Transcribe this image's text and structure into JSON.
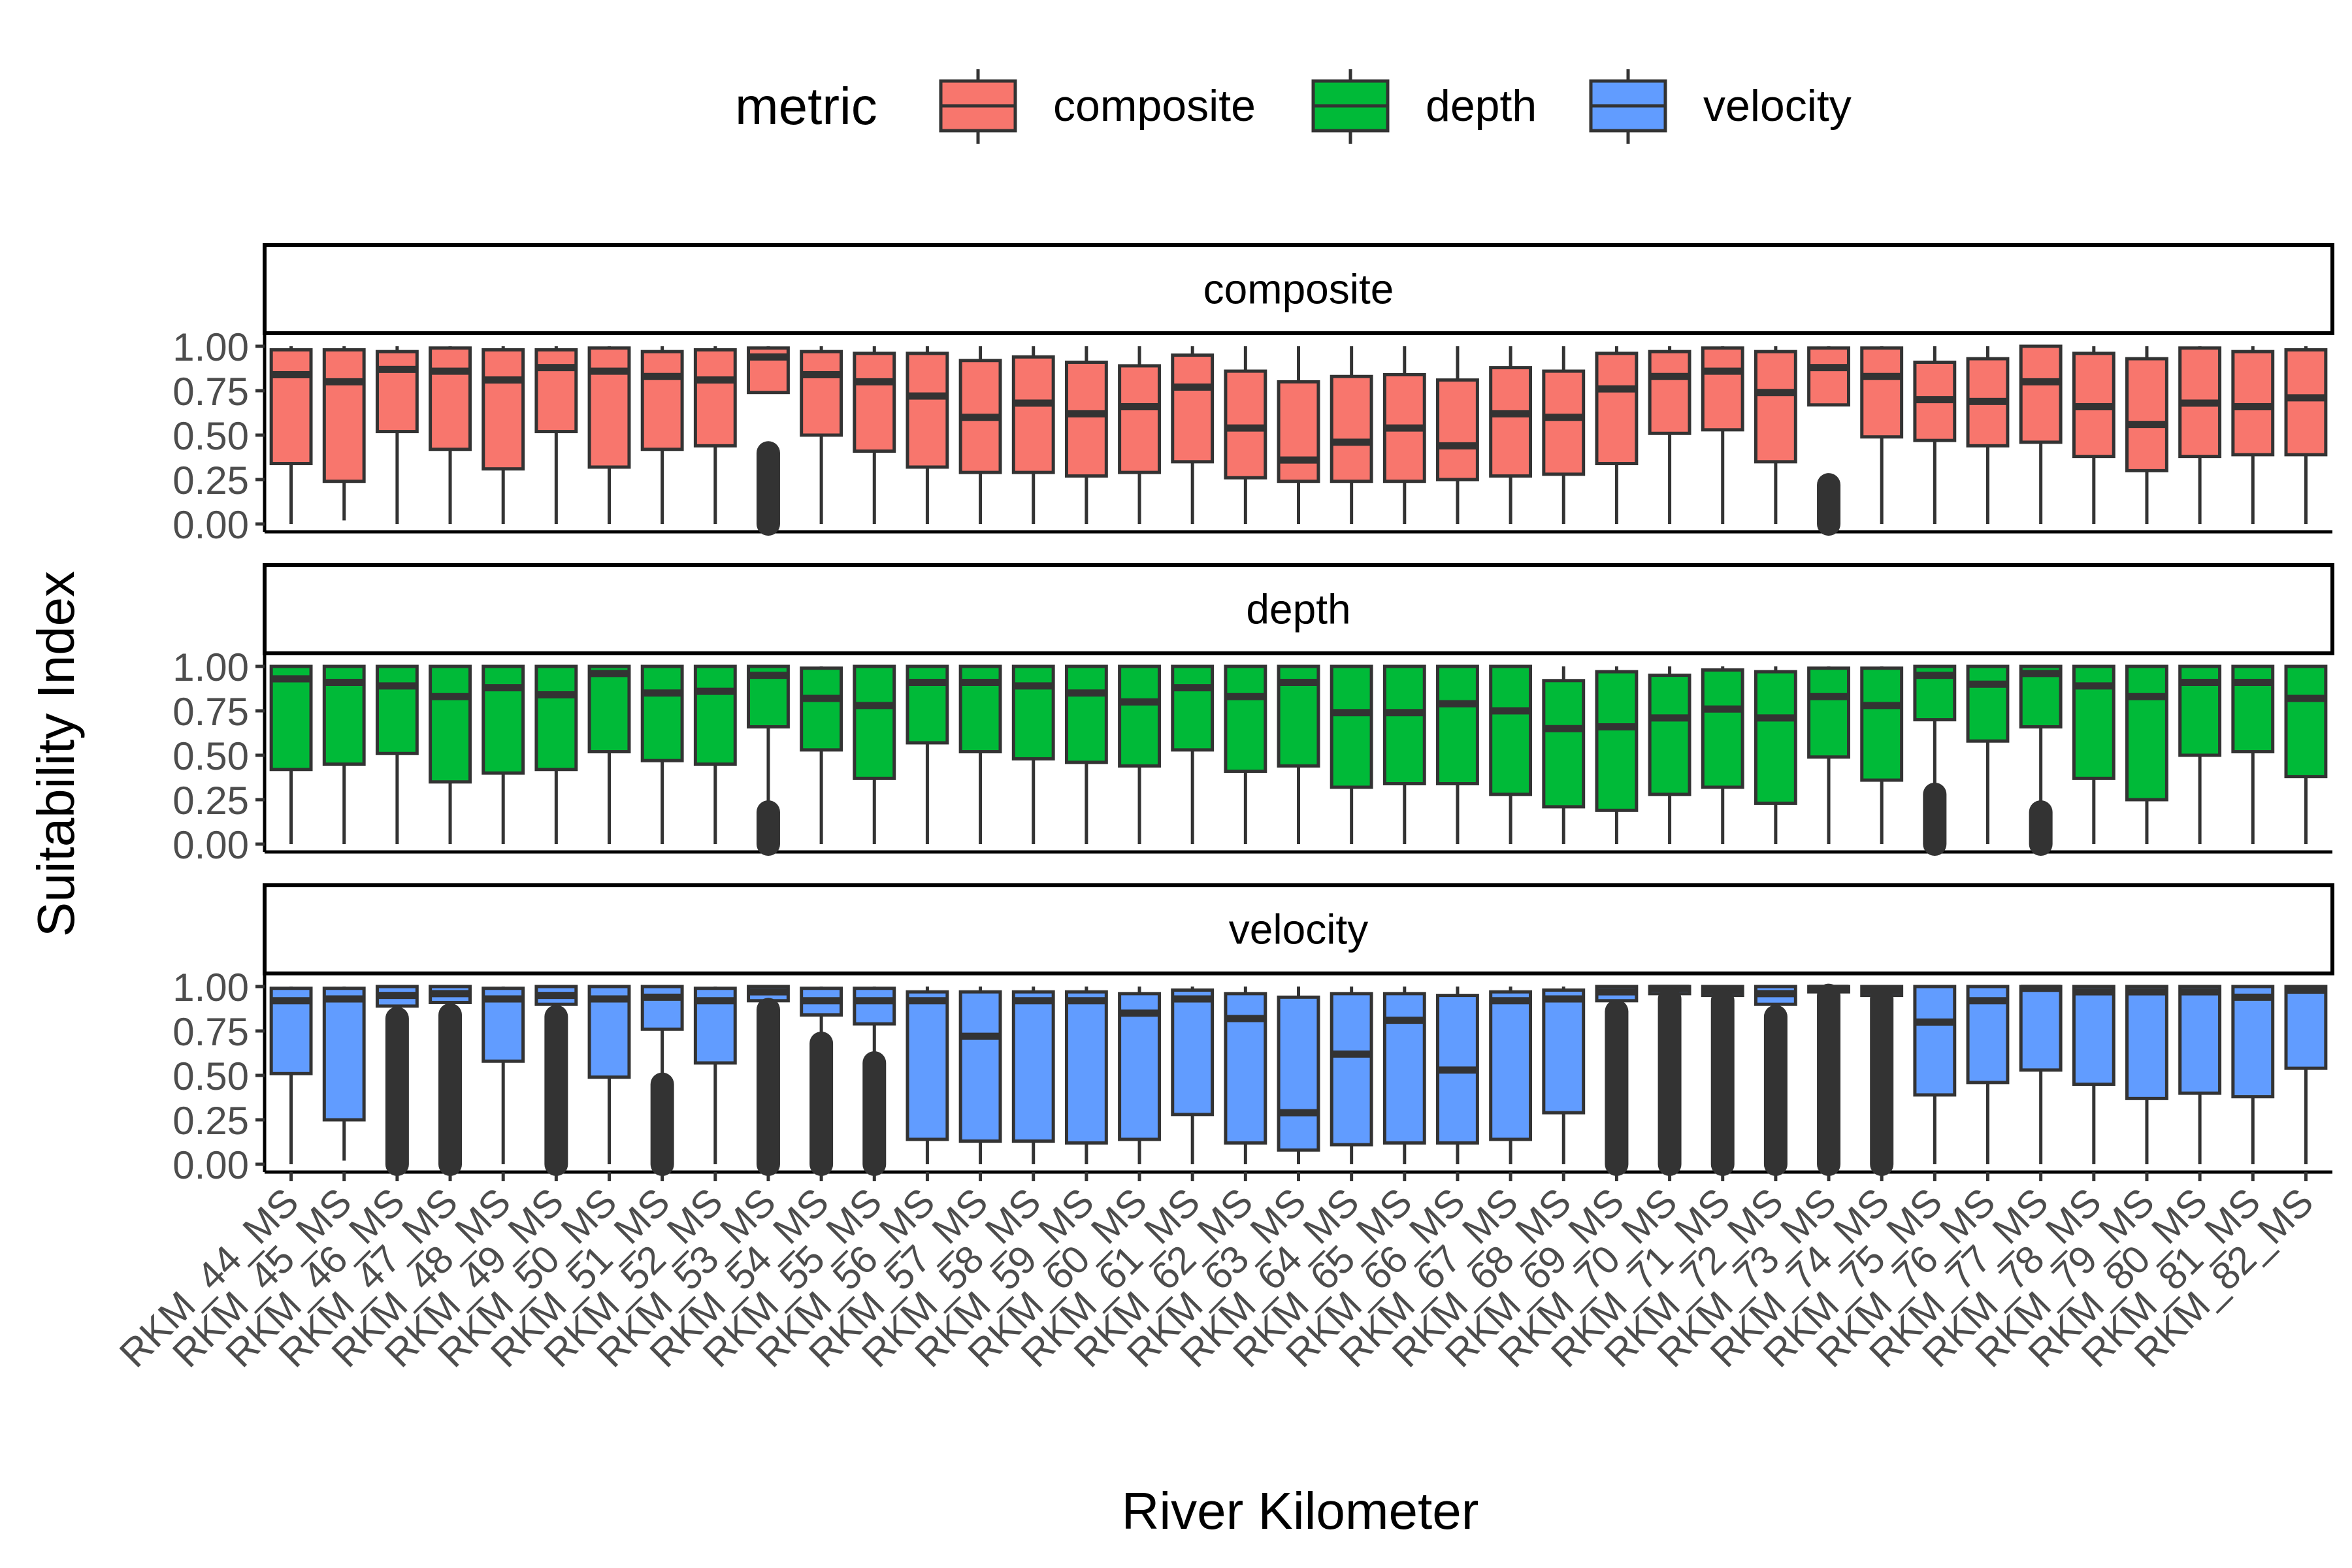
{
  "chart_data": {
    "type": "boxplot",
    "facet_layout": "vertical",
    "xlabel": "River Kilometer",
    "ylabel": "Suitability Index",
    "yticks": [
      "0.00",
      "0.25",
      "0.50",
      "0.75",
      "1.00"
    ],
    "ylim": [
      0,
      1
    ],
    "legend": {
      "title": "metric",
      "position": "top",
      "entries": [
        {
          "label": "composite",
          "color": "#F8766D"
        },
        {
          "label": "depth",
          "color": "#00BA38"
        },
        {
          "label": "velocity",
          "color": "#619CFF"
        }
      ]
    },
    "categories": [
      "RKM_44_MS",
      "RKM_45_MS",
      "RKM_46_MS",
      "RKM_47_MS",
      "RKM_48_MS",
      "RKM_49_MS",
      "RKM_50_MS",
      "RKM_51_MS",
      "RKM_52_MS",
      "RKM_53_MS",
      "RKM_54_MS",
      "RKM_55_MS",
      "RKM_56_MS",
      "RKM_57_MS",
      "RKM_58_MS",
      "RKM_59_MS",
      "RKM_60_MS",
      "RKM_61_MS",
      "RKM_62_MS",
      "RKM_63_MS",
      "RKM_64_MS",
      "RKM_65_MS",
      "RKM_66_MS",
      "RKM_67_MS",
      "RKM_68_MS",
      "RKM_69_MS",
      "RKM_70_MS",
      "RKM_71_MS",
      "RKM_72_MS",
      "RKM_73_MS",
      "RKM_74_MS",
      "RKM_75_MS",
      "RKM_76_MS",
      "RKM_77_MS",
      "RKM_78_MS",
      "RKM_79_MS",
      "RKM_80_MS",
      "RKM_81_MS",
      "RKM_82_MS"
    ],
    "series": [
      {
        "name": "composite",
        "color": "#F8766D",
        "boxes": [
          [
            0.0,
            0.34,
            0.84,
            0.98,
            1.0,
            null
          ],
          [
            0.02,
            0.24,
            0.8,
            0.98,
            1.0,
            null
          ],
          [
            0.0,
            0.52,
            0.87,
            0.97,
            1.0,
            null
          ],
          [
            0.0,
            0.42,
            0.86,
            0.99,
            1.0,
            null
          ],
          [
            0.0,
            0.31,
            0.81,
            0.98,
            1.0,
            null
          ],
          [
            0.0,
            0.52,
            0.88,
            0.98,
            1.0,
            null
          ],
          [
            0.0,
            0.32,
            0.86,
            0.99,
            1.0,
            null
          ],
          [
            0.0,
            0.42,
            0.83,
            0.97,
            1.0,
            null
          ],
          [
            0.0,
            0.44,
            0.81,
            0.98,
            1.0,
            null
          ],
          [
            0.75,
            0.74,
            0.94,
            0.99,
            1.0,
            [
              0.0,
              0.4
            ]
          ],
          [
            0.0,
            0.5,
            0.84,
            0.97,
            1.0,
            null
          ],
          [
            0.0,
            0.41,
            0.8,
            0.96,
            1.0,
            null
          ],
          [
            0.0,
            0.32,
            0.72,
            0.96,
            1.0,
            null
          ],
          [
            0.0,
            0.29,
            0.6,
            0.92,
            1.0,
            null
          ],
          [
            0.0,
            0.29,
            0.68,
            0.94,
            1.0,
            null
          ],
          [
            0.0,
            0.27,
            0.62,
            0.91,
            1.0,
            null
          ],
          [
            0.0,
            0.29,
            0.66,
            0.89,
            1.0,
            null
          ],
          [
            0.0,
            0.35,
            0.77,
            0.95,
            1.0,
            null
          ],
          [
            0.0,
            0.26,
            0.54,
            0.86,
            1.0,
            null
          ],
          [
            0.0,
            0.24,
            0.36,
            0.8,
            1.0,
            null
          ],
          [
            0.0,
            0.24,
            0.46,
            0.83,
            1.0,
            null
          ],
          [
            0.0,
            0.24,
            0.54,
            0.84,
            1.0,
            null
          ],
          [
            0.0,
            0.25,
            0.44,
            0.81,
            1.0,
            null
          ],
          [
            0.0,
            0.27,
            0.62,
            0.88,
            1.0,
            null
          ],
          [
            0.0,
            0.28,
            0.6,
            0.86,
            1.0,
            null
          ],
          [
            0.0,
            0.34,
            0.76,
            0.96,
            1.0,
            null
          ],
          [
            0.0,
            0.51,
            0.83,
            0.97,
            1.0,
            null
          ],
          [
            0.0,
            0.53,
            0.86,
            0.99,
            1.0,
            null
          ],
          [
            0.0,
            0.35,
            0.74,
            0.97,
            1.0,
            null
          ],
          [
            0.68,
            0.67,
            0.88,
            0.99,
            1.0,
            [
              0.0,
              0.22
            ]
          ],
          [
            0.0,
            0.49,
            0.83,
            0.99,
            1.0,
            null
          ],
          [
            0.0,
            0.47,
            0.7,
            0.91,
            1.0,
            null
          ],
          [
            0.0,
            0.44,
            0.69,
            0.93,
            1.0,
            null
          ],
          [
            0.0,
            0.46,
            0.8,
            1.0,
            1.0,
            null
          ],
          [
            0.0,
            0.38,
            0.66,
            0.96,
            1.0,
            null
          ],
          [
            0.0,
            0.3,
            0.56,
            0.93,
            1.0,
            null
          ],
          [
            0.0,
            0.38,
            0.68,
            0.99,
            1.0,
            null
          ],
          [
            0.0,
            0.39,
            0.66,
            0.97,
            1.0,
            null
          ],
          [
            0.0,
            0.39,
            0.71,
            0.98,
            1.0,
            null
          ]
        ]
      },
      {
        "name": "depth",
        "color": "#00BA38",
        "boxes": [
          [
            0.0,
            0.42,
            0.93,
            1.0,
            1.0,
            null
          ],
          [
            0.0,
            0.45,
            0.91,
            1.0,
            1.0,
            null
          ],
          [
            0.0,
            0.51,
            0.89,
            1.0,
            1.0,
            null
          ],
          [
            0.0,
            0.35,
            0.83,
            1.0,
            1.0,
            null
          ],
          [
            0.0,
            0.4,
            0.88,
            1.0,
            1.0,
            null
          ],
          [
            0.0,
            0.42,
            0.84,
            1.0,
            1.0,
            null
          ],
          [
            0.0,
            0.52,
            0.96,
            1.0,
            1.0,
            null
          ],
          [
            0.0,
            0.47,
            0.85,
            1.0,
            1.0,
            null
          ],
          [
            0.0,
            0.45,
            0.86,
            1.0,
            1.0,
            null
          ],
          [
            0.22,
            0.66,
            0.95,
            1.0,
            1.0,
            [
              0.0,
              0.18
            ]
          ],
          [
            0.0,
            0.53,
            0.82,
            0.99,
            1.0,
            null
          ],
          [
            0.0,
            0.37,
            0.78,
            1.0,
            1.0,
            null
          ],
          [
            0.0,
            0.57,
            0.91,
            1.0,
            1.0,
            null
          ],
          [
            0.0,
            0.52,
            0.91,
            1.0,
            1.0,
            null
          ],
          [
            0.0,
            0.48,
            0.89,
            1.0,
            1.0,
            null
          ],
          [
            0.0,
            0.46,
            0.85,
            1.0,
            1.0,
            null
          ],
          [
            0.0,
            0.44,
            0.8,
            1.0,
            1.0,
            null
          ],
          [
            0.0,
            0.53,
            0.88,
            1.0,
            1.0,
            null
          ],
          [
            0.0,
            0.41,
            0.83,
            1.0,
            1.0,
            null
          ],
          [
            0.0,
            0.44,
            0.91,
            1.0,
            1.0,
            null
          ],
          [
            0.0,
            0.32,
            0.74,
            1.0,
            1.0,
            null
          ],
          [
            0.0,
            0.34,
            0.74,
            1.0,
            1.0,
            null
          ],
          [
            0.0,
            0.34,
            0.79,
            1.0,
            1.0,
            null
          ],
          [
            0.0,
            0.28,
            0.75,
            1.0,
            1.0,
            null
          ],
          [
            0.0,
            0.21,
            0.65,
            0.92,
            1.0,
            null
          ],
          [
            0.0,
            0.19,
            0.66,
            0.97,
            1.0,
            null
          ],
          [
            0.0,
            0.28,
            0.71,
            0.95,
            1.0,
            null
          ],
          [
            0.0,
            0.32,
            0.76,
            0.98,
            1.0,
            null
          ],
          [
            0.0,
            0.23,
            0.71,
            0.97,
            1.0,
            null
          ],
          [
            0.0,
            0.49,
            0.83,
            0.99,
            1.0,
            null
          ],
          [
            0.0,
            0.36,
            0.78,
            0.99,
            1.0,
            null
          ],
          [
            0.3,
            0.7,
            0.95,
            1.0,
            1.0,
            [
              0.0,
              0.28
            ]
          ],
          [
            0.0,
            0.58,
            0.9,
            1.0,
            1.0,
            null
          ],
          [
            0.2,
            0.66,
            0.96,
            1.0,
            1.0,
            [
              0.0,
              0.18
            ]
          ],
          [
            0.0,
            0.37,
            0.89,
            1.0,
            1.0,
            null
          ],
          [
            0.0,
            0.25,
            0.83,
            1.0,
            1.0,
            null
          ],
          [
            0.0,
            0.5,
            0.91,
            1.0,
            1.0,
            null
          ],
          [
            0.0,
            0.52,
            0.91,
            1.0,
            1.0,
            null
          ],
          [
            0.0,
            0.38,
            0.82,
            1.0,
            1.0,
            null
          ]
        ]
      },
      {
        "name": "velocity",
        "color": "#619CFF",
        "boxes": [
          [
            0.0,
            0.51,
            0.92,
            0.99,
            1.0,
            null
          ],
          [
            0.02,
            0.25,
            0.93,
            0.99,
            1.0,
            null
          ],
          [
            0.85,
            0.89,
            0.95,
            1.0,
            1.0,
            [
              0.0,
              0.82
            ]
          ],
          [
            0.86,
            0.91,
            0.96,
            1.0,
            1.0,
            [
              0.0,
              0.84
            ]
          ],
          [
            0.0,
            0.58,
            0.93,
            0.99,
            1.0,
            null
          ],
          [
            0.85,
            0.9,
            0.95,
            1.0,
            1.0,
            [
              0.0,
              0.83
            ]
          ],
          [
            0.0,
            0.49,
            0.93,
            1.0,
            1.0,
            null
          ],
          [
            0.48,
            0.76,
            0.94,
            1.0,
            1.0,
            [
              0.0,
              0.45
            ]
          ],
          [
            0.0,
            0.57,
            0.92,
            0.99,
            1.0,
            null
          ],
          [
            0.9,
            0.92,
            0.97,
            1.0,
            1.0,
            [
              0.0,
              0.87
            ]
          ],
          [
            0.7,
            0.84,
            0.92,
            0.99,
            1.0,
            [
              0.0,
              0.68
            ]
          ],
          [
            0.6,
            0.79,
            0.92,
            0.99,
            1.0,
            [
              0.0,
              0.57
            ]
          ],
          [
            0.0,
            0.14,
            0.92,
            0.97,
            1.0,
            null
          ],
          [
            0.0,
            0.13,
            0.72,
            0.97,
            1.0,
            null
          ],
          [
            0.0,
            0.13,
            0.92,
            0.97,
            1.0,
            null
          ],
          [
            0.0,
            0.12,
            0.92,
            0.97,
            1.0,
            null
          ],
          [
            0.0,
            0.14,
            0.85,
            0.96,
            1.0,
            null
          ],
          [
            0.0,
            0.28,
            0.93,
            0.98,
            1.0,
            null
          ],
          [
            0.0,
            0.12,
            0.82,
            0.96,
            1.0,
            null
          ],
          [
            0.0,
            0.08,
            0.29,
            0.94,
            1.0,
            null
          ],
          [
            0.0,
            0.11,
            0.62,
            0.96,
            1.0,
            null
          ],
          [
            0.0,
            0.12,
            0.81,
            0.96,
            1.0,
            null
          ],
          [
            0.0,
            0.12,
            0.53,
            0.95,
            1.0,
            null
          ],
          [
            0.0,
            0.14,
            0.92,
            0.97,
            1.0,
            null
          ],
          [
            0.0,
            0.29,
            0.93,
            0.98,
            1.0,
            null
          ],
          [
            0.9,
            0.92,
            0.97,
            1.0,
            1.0,
            [
              0.0,
              0.86
            ]
          ],
          [
            0.95,
            0.96,
            0.99,
            1.0,
            1.0,
            [
              0.0,
              0.93
            ]
          ],
          [
            0.94,
            0.95,
            0.98,
            1.0,
            1.0,
            [
              0.0,
              0.92
            ]
          ],
          [
            0.85,
            0.9,
            0.96,
            1.0,
            1.0,
            [
              0.0,
              0.83
            ]
          ],
          [
            0.96,
            0.97,
            0.99,
            1.0,
            1.0,
            [
              0.0,
              0.95
            ]
          ],
          [
            0.94,
            0.95,
            0.98,
            1.0,
            1.0,
            [
              0.0,
              0.93
            ]
          ],
          [
            0.0,
            0.39,
            0.8,
            1.0,
            1.0,
            null
          ],
          [
            0.0,
            0.46,
            0.92,
            1.0,
            1.0,
            null
          ],
          [
            0.0,
            0.53,
            0.99,
            1.0,
            1.0,
            null
          ],
          [
            0.0,
            0.45,
            0.97,
            1.0,
            1.0,
            null
          ],
          [
            0.0,
            0.37,
            0.97,
            1.0,
            1.0,
            null
          ],
          [
            0.0,
            0.4,
            0.97,
            1.0,
            1.0,
            null
          ],
          [
            0.0,
            0.38,
            0.94,
            1.0,
            1.0,
            null
          ],
          [
            0.0,
            0.54,
            0.98,
            1.0,
            1.0,
            null
          ]
        ]
      }
    ]
  }
}
